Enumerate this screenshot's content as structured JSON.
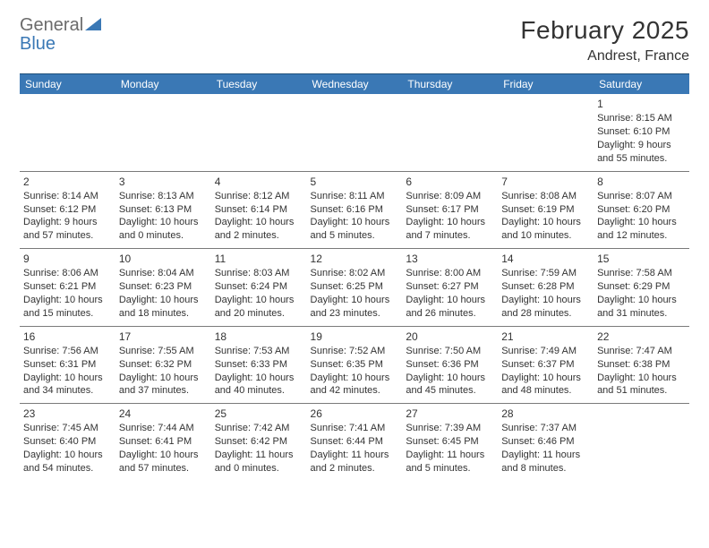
{
  "logo": {
    "general": "General",
    "blue": "Blue",
    "triangle_color": "#3a78b5"
  },
  "title": {
    "month": "February 2025",
    "location": "Andrest, France"
  },
  "colors": {
    "header_bg": "#3a78b5",
    "header_text": "#ffffff",
    "cell_border": "#7a7a7a",
    "text": "#333333",
    "background": "#ffffff"
  },
  "typography": {
    "title_fontsize": 28,
    "location_fontsize": 16,
    "dayheader_fontsize": 12,
    "cell_fontsize": 11
  },
  "weekdays": [
    "Sunday",
    "Monday",
    "Tuesday",
    "Wednesday",
    "Thursday",
    "Friday",
    "Saturday"
  ],
  "weeks": [
    [
      null,
      null,
      null,
      null,
      null,
      null,
      {
        "n": "1",
        "sr": "Sunrise: 8:15 AM",
        "ss": "Sunset: 6:10 PM",
        "dl1": "Daylight: 9 hours",
        "dl2": "and 55 minutes."
      }
    ],
    [
      {
        "n": "2",
        "sr": "Sunrise: 8:14 AM",
        "ss": "Sunset: 6:12 PM",
        "dl1": "Daylight: 9 hours",
        "dl2": "and 57 minutes."
      },
      {
        "n": "3",
        "sr": "Sunrise: 8:13 AM",
        "ss": "Sunset: 6:13 PM",
        "dl1": "Daylight: 10 hours",
        "dl2": "and 0 minutes."
      },
      {
        "n": "4",
        "sr": "Sunrise: 8:12 AM",
        "ss": "Sunset: 6:14 PM",
        "dl1": "Daylight: 10 hours",
        "dl2": "and 2 minutes."
      },
      {
        "n": "5",
        "sr": "Sunrise: 8:11 AM",
        "ss": "Sunset: 6:16 PM",
        "dl1": "Daylight: 10 hours",
        "dl2": "and 5 minutes."
      },
      {
        "n": "6",
        "sr": "Sunrise: 8:09 AM",
        "ss": "Sunset: 6:17 PM",
        "dl1": "Daylight: 10 hours",
        "dl2": "and 7 minutes."
      },
      {
        "n": "7",
        "sr": "Sunrise: 8:08 AM",
        "ss": "Sunset: 6:19 PM",
        "dl1": "Daylight: 10 hours",
        "dl2": "and 10 minutes."
      },
      {
        "n": "8",
        "sr": "Sunrise: 8:07 AM",
        "ss": "Sunset: 6:20 PM",
        "dl1": "Daylight: 10 hours",
        "dl2": "and 12 minutes."
      }
    ],
    [
      {
        "n": "9",
        "sr": "Sunrise: 8:06 AM",
        "ss": "Sunset: 6:21 PM",
        "dl1": "Daylight: 10 hours",
        "dl2": "and 15 minutes."
      },
      {
        "n": "10",
        "sr": "Sunrise: 8:04 AM",
        "ss": "Sunset: 6:23 PM",
        "dl1": "Daylight: 10 hours",
        "dl2": "and 18 minutes."
      },
      {
        "n": "11",
        "sr": "Sunrise: 8:03 AM",
        "ss": "Sunset: 6:24 PM",
        "dl1": "Daylight: 10 hours",
        "dl2": "and 20 minutes."
      },
      {
        "n": "12",
        "sr": "Sunrise: 8:02 AM",
        "ss": "Sunset: 6:25 PM",
        "dl1": "Daylight: 10 hours",
        "dl2": "and 23 minutes."
      },
      {
        "n": "13",
        "sr": "Sunrise: 8:00 AM",
        "ss": "Sunset: 6:27 PM",
        "dl1": "Daylight: 10 hours",
        "dl2": "and 26 minutes."
      },
      {
        "n": "14",
        "sr": "Sunrise: 7:59 AM",
        "ss": "Sunset: 6:28 PM",
        "dl1": "Daylight: 10 hours",
        "dl2": "and 28 minutes."
      },
      {
        "n": "15",
        "sr": "Sunrise: 7:58 AM",
        "ss": "Sunset: 6:29 PM",
        "dl1": "Daylight: 10 hours",
        "dl2": "and 31 minutes."
      }
    ],
    [
      {
        "n": "16",
        "sr": "Sunrise: 7:56 AM",
        "ss": "Sunset: 6:31 PM",
        "dl1": "Daylight: 10 hours",
        "dl2": "and 34 minutes."
      },
      {
        "n": "17",
        "sr": "Sunrise: 7:55 AM",
        "ss": "Sunset: 6:32 PM",
        "dl1": "Daylight: 10 hours",
        "dl2": "and 37 minutes."
      },
      {
        "n": "18",
        "sr": "Sunrise: 7:53 AM",
        "ss": "Sunset: 6:33 PM",
        "dl1": "Daylight: 10 hours",
        "dl2": "and 40 minutes."
      },
      {
        "n": "19",
        "sr": "Sunrise: 7:52 AM",
        "ss": "Sunset: 6:35 PM",
        "dl1": "Daylight: 10 hours",
        "dl2": "and 42 minutes."
      },
      {
        "n": "20",
        "sr": "Sunrise: 7:50 AM",
        "ss": "Sunset: 6:36 PM",
        "dl1": "Daylight: 10 hours",
        "dl2": "and 45 minutes."
      },
      {
        "n": "21",
        "sr": "Sunrise: 7:49 AM",
        "ss": "Sunset: 6:37 PM",
        "dl1": "Daylight: 10 hours",
        "dl2": "and 48 minutes."
      },
      {
        "n": "22",
        "sr": "Sunrise: 7:47 AM",
        "ss": "Sunset: 6:38 PM",
        "dl1": "Daylight: 10 hours",
        "dl2": "and 51 minutes."
      }
    ],
    [
      {
        "n": "23",
        "sr": "Sunrise: 7:45 AM",
        "ss": "Sunset: 6:40 PM",
        "dl1": "Daylight: 10 hours",
        "dl2": "and 54 minutes."
      },
      {
        "n": "24",
        "sr": "Sunrise: 7:44 AM",
        "ss": "Sunset: 6:41 PM",
        "dl1": "Daylight: 10 hours",
        "dl2": "and 57 minutes."
      },
      {
        "n": "25",
        "sr": "Sunrise: 7:42 AM",
        "ss": "Sunset: 6:42 PM",
        "dl1": "Daylight: 11 hours",
        "dl2": "and 0 minutes."
      },
      {
        "n": "26",
        "sr": "Sunrise: 7:41 AM",
        "ss": "Sunset: 6:44 PM",
        "dl1": "Daylight: 11 hours",
        "dl2": "and 2 minutes."
      },
      {
        "n": "27",
        "sr": "Sunrise: 7:39 AM",
        "ss": "Sunset: 6:45 PM",
        "dl1": "Daylight: 11 hours",
        "dl2": "and 5 minutes."
      },
      {
        "n": "28",
        "sr": "Sunrise: 7:37 AM",
        "ss": "Sunset: 6:46 PM",
        "dl1": "Daylight: 11 hours",
        "dl2": "and 8 minutes."
      },
      null
    ]
  ]
}
